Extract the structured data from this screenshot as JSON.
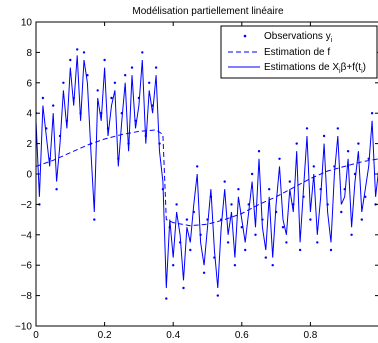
{
  "chart_data": {
    "type": "line",
    "title": "Modélisation partiellement linéaire",
    "xlabel": "",
    "ylabel": "",
    "xlim": [
      0,
      1
    ],
    "ylim": [
      -10,
      10
    ],
    "xticks": [
      0,
      0.2,
      0.4,
      0.6,
      0.8
    ],
    "xtick_labels": [
      "0",
      "0.2",
      "0.4",
      "0.6",
      "0.8"
    ],
    "yticks": [
      -10,
      -8,
      -6,
      -4,
      -2,
      0,
      2,
      4,
      6,
      8,
      10
    ],
    "ytick_labels": [
      "−10",
      "−8",
      "−6",
      "−4",
      "−2",
      "0",
      "2",
      "4",
      "6",
      "8",
      "10"
    ],
    "grid": false,
    "legend_position": "top-right",
    "color": "#0000ff",
    "series": [
      {
        "name_main": "Observations y",
        "name_sub": "i",
        "style": "points",
        "x": [
          0.0,
          0.01,
          0.02,
          0.03,
          0.04,
          0.05,
          0.06,
          0.07,
          0.08,
          0.09,
          0.1,
          0.11,
          0.12,
          0.13,
          0.14,
          0.15,
          0.16,
          0.17,
          0.18,
          0.19,
          0.2,
          0.21,
          0.22,
          0.23,
          0.24,
          0.25,
          0.26,
          0.27,
          0.28,
          0.29,
          0.3,
          0.31,
          0.32,
          0.33,
          0.34,
          0.35,
          0.36,
          0.37,
          0.38,
          0.39,
          0.4,
          0.41,
          0.42,
          0.43,
          0.44,
          0.45,
          0.46,
          0.47,
          0.48,
          0.49,
          0.5,
          0.51,
          0.52,
          0.53,
          0.54,
          0.55,
          0.56,
          0.57,
          0.58,
          0.59,
          0.6,
          0.61,
          0.62,
          0.63,
          0.64,
          0.65,
          0.66,
          0.67,
          0.68,
          0.69,
          0.7,
          0.71,
          0.72,
          0.73,
          0.74,
          0.75,
          0.76,
          0.77,
          0.78,
          0.79,
          0.8,
          0.81,
          0.82,
          0.83,
          0.84,
          0.85,
          0.86,
          0.87,
          0.88,
          0.89,
          0.9,
          0.91,
          0.92,
          0.93,
          0.94,
          0.95,
          0.96,
          0.97,
          0.98,
          0.99,
          1.0
        ],
        "y": [
          4.0,
          -2.0,
          5.0,
          3.0,
          1.0,
          4.5,
          -1.0,
          2.5,
          6.0,
          3.5,
          7.5,
          5.0,
          8.2,
          4.0,
          8.0,
          6.5,
          2.0,
          -3.0,
          5.5,
          4.0,
          7.5,
          3.0,
          5.0,
          6.0,
          1.0,
          4.0,
          6.5,
          2.0,
          7.0,
          3.5,
          5.0,
          8.0,
          2.5,
          6.0,
          4.5,
          7.0,
          2.0,
          -1.0,
          -8.2,
          -3.5,
          -6.0,
          -2.0,
          -4.5,
          -7.5,
          -3.0,
          -5.0,
          -2.5,
          0.5,
          -4.0,
          -6.5,
          -3.0,
          -1.5,
          -5.5,
          -8.0,
          -3.0,
          -0.5,
          -4.5,
          -2.0,
          -6.0,
          -1.0,
          -3.5,
          -5.0,
          -2.0,
          0.0,
          -4.0,
          1.5,
          -3.0,
          -5.5,
          -1.0,
          -6.0,
          -2.5,
          1.0,
          -3.5,
          -4.5,
          -0.5,
          -2.0,
          2.0,
          -5.0,
          -1.5,
          3.0,
          -3.0,
          0.5,
          -4.5,
          -1.0,
          2.5,
          -2.0,
          -5.0,
          0.5,
          3.0,
          -2.5,
          -1.0,
          1.5,
          -4.0,
          0.0,
          2.0,
          -3.0,
          -1.5,
          1.0,
          4.0,
          -2.0,
          1.0
        ]
      },
      {
        "name": "Estimation de f",
        "style": "dashed",
        "x": [
          0.0,
          0.05,
          0.1,
          0.15,
          0.2,
          0.25,
          0.3,
          0.35,
          0.37,
          0.38,
          0.4,
          0.45,
          0.5,
          0.55,
          0.6,
          0.65,
          0.7,
          0.75,
          0.8,
          0.85,
          0.9,
          0.95,
          1.0
        ],
        "y": [
          0.5,
          0.9,
          1.4,
          1.9,
          2.3,
          2.6,
          2.8,
          2.9,
          2.6,
          -3.0,
          -3.2,
          -3.4,
          -3.3,
          -3.0,
          -2.6,
          -2.0,
          -1.5,
          -0.9,
          -0.3,
          0.2,
          0.5,
          0.8,
          1.0
        ]
      },
      {
        "name_main": "Estimations de X",
        "name_sub1": "i",
        "name_mid": "β+f(t",
        "name_sub2": "i",
        "name_end": ")",
        "style": "solid",
        "x": [
          0.0,
          0.01,
          0.02,
          0.03,
          0.04,
          0.05,
          0.06,
          0.07,
          0.08,
          0.09,
          0.1,
          0.11,
          0.12,
          0.13,
          0.14,
          0.15,
          0.16,
          0.17,
          0.18,
          0.19,
          0.2,
          0.21,
          0.22,
          0.23,
          0.24,
          0.25,
          0.26,
          0.27,
          0.28,
          0.29,
          0.3,
          0.31,
          0.32,
          0.33,
          0.34,
          0.35,
          0.36,
          0.37,
          0.38,
          0.39,
          0.4,
          0.41,
          0.42,
          0.43,
          0.44,
          0.45,
          0.46,
          0.47,
          0.48,
          0.49,
          0.5,
          0.51,
          0.52,
          0.53,
          0.54,
          0.55,
          0.56,
          0.57,
          0.58,
          0.59,
          0.6,
          0.61,
          0.62,
          0.63,
          0.64,
          0.65,
          0.66,
          0.67,
          0.68,
          0.69,
          0.7,
          0.71,
          0.72,
          0.73,
          0.74,
          0.75,
          0.76,
          0.77,
          0.78,
          0.79,
          0.8,
          0.81,
          0.82,
          0.83,
          0.84,
          0.85,
          0.86,
          0.87,
          0.88,
          0.89,
          0.9,
          0.91,
          0.92,
          0.93,
          0.94,
          0.95,
          0.96,
          0.97,
          0.98,
          0.99,
          1.0
        ],
        "y": [
          3.5,
          -1.5,
          4.5,
          2.5,
          0.5,
          4.0,
          -0.5,
          2.0,
          5.5,
          3.0,
          7.0,
          4.5,
          7.8,
          3.5,
          7.5,
          6.0,
          1.5,
          -2.5,
          5.0,
          3.5,
          7.0,
          2.5,
          4.5,
          5.5,
          0.5,
          3.5,
          6.0,
          1.5,
          6.5,
          3.0,
          4.5,
          7.5,
          2.0,
          5.5,
          4.0,
          6.5,
          1.5,
          -0.5,
          -7.5,
          -3.0,
          -5.5,
          -2.5,
          -4.0,
          -7.0,
          -3.5,
          -4.5,
          -2.0,
          0.0,
          -4.5,
          -6.0,
          -3.5,
          -1.0,
          -5.0,
          -7.5,
          -3.5,
          -1.0,
          -4.0,
          -2.5,
          -5.5,
          -1.5,
          -3.0,
          -4.5,
          -2.5,
          -0.5,
          -3.5,
          1.0,
          -3.5,
          -5.0,
          -1.5,
          -5.5,
          -2.0,
          0.5,
          -3.0,
          -4.0,
          -1.0,
          -2.5,
          1.5,
          -4.5,
          -1.0,
          2.5,
          -2.5,
          0.0,
          -4.0,
          -1.5,
          2.0,
          -2.5,
          -4.5,
          0.0,
          2.5,
          -2.0,
          -1.5,
          1.0,
          -3.5,
          -0.5,
          1.5,
          -2.5,
          -1.0,
          0.5,
          3.5,
          -1.5,
          0.5
        ]
      }
    ]
  }
}
